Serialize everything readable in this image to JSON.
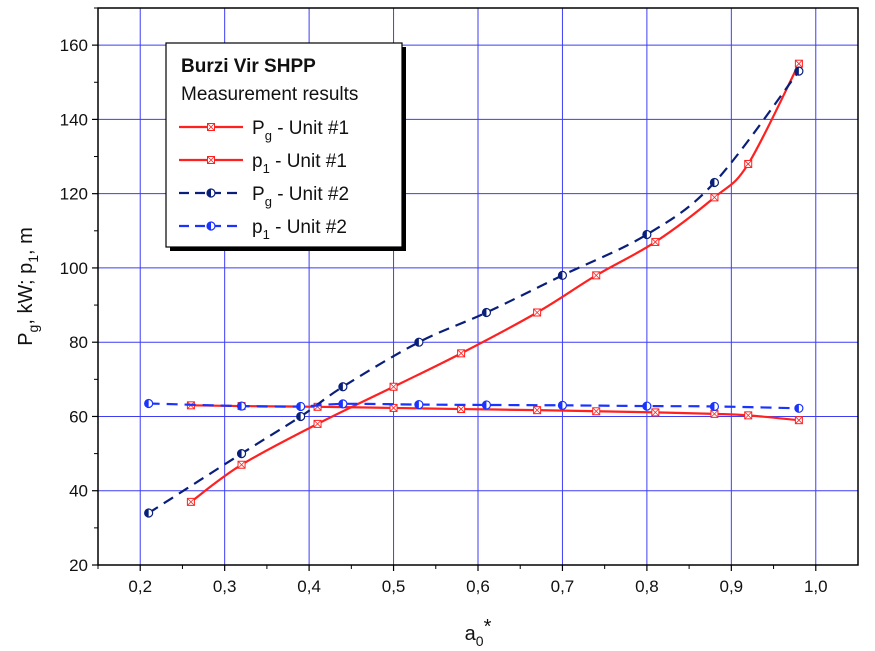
{
  "chart_data": {
    "type": "line",
    "xlabel": "a",
    "xlabel_sub": "0",
    "xlabel_sup": "*",
    "ylabel_parts": [
      {
        "t": "P",
        "sub": false
      },
      {
        "t": "g",
        "sub": true
      },
      {
        "t": ", kW; p",
        "sub": false
      },
      {
        "t": "1",
        "sub": true
      },
      {
        "t": ", m",
        "sub": false
      }
    ],
    "xlim": [
      0.15,
      1.05
    ],
    "ylim": [
      20,
      170
    ],
    "xticks": [
      0.2,
      0.3,
      0.4,
      0.5,
      0.6,
      0.7,
      0.8,
      0.9,
      1.0
    ],
    "xtick_labels": [
      "0,2",
      "0,3",
      "0,4",
      "0,5",
      "0,6",
      "0,7",
      "0,8",
      "0,9",
      "1,0"
    ],
    "yticks": [
      20,
      40,
      60,
      80,
      100,
      120,
      140,
      160
    ],
    "ytick_labels": [
      "20",
      "40",
      "60",
      "80",
      "100",
      "120",
      "140",
      "160"
    ],
    "grid": true,
    "legend": {
      "title": "Burzi Vir SHPP",
      "subtitle": "Measurement results",
      "placement": "top-left"
    },
    "series": [
      {
        "name_main": "P",
        "name_sub": "g",
        "name_rest": " - Unit  #1",
        "color": "#ff2020",
        "dash": "solid",
        "marker": "square-x",
        "x": [
          0.26,
          0.32,
          0.41,
          0.5,
          0.58,
          0.67,
          0.74,
          0.81,
          0.88,
          0.92,
          0.98
        ],
        "y": [
          37,
          47,
          58,
          68,
          77,
          88,
          98,
          107,
          119,
          128,
          155
        ]
      },
      {
        "name_main": "p",
        "name_sub": "1",
        "name_rest": " - Unit  #1",
        "color": "#ff2020",
        "dash": "solid",
        "marker": "square-x",
        "x": [
          0.26,
          0.32,
          0.41,
          0.5,
          0.58,
          0.67,
          0.74,
          0.81,
          0.88,
          0.92,
          0.98
        ],
        "y": [
          63,
          62.8,
          62.6,
          62.3,
          62,
          61.7,
          61.4,
          61.1,
          60.7,
          60.3,
          59
        ]
      },
      {
        "name_main": "P",
        "name_sub": "g",
        "name_rest": " - Unit  #2",
        "color": "#0a1f7a",
        "dash": "dashed",
        "marker": "half-circle",
        "x": [
          0.21,
          0.32,
          0.39,
          0.44,
          0.53,
          0.61,
          0.7,
          0.8,
          0.88,
          0.98
        ],
        "y": [
          34,
          50,
          60,
          68,
          80,
          88,
          98,
          109,
          123,
          153
        ]
      },
      {
        "name_main": "p",
        "name_sub": "1",
        "name_rest": " - Unit  #2",
        "color": "#1a33ff",
        "dash": "dashed",
        "marker": "half-circle",
        "x": [
          0.21,
          0.32,
          0.39,
          0.44,
          0.53,
          0.61,
          0.7,
          0.8,
          0.88,
          0.98
        ],
        "y": [
          63.5,
          62.8,
          62.7,
          63.4,
          63.2,
          63.1,
          63,
          62.8,
          62.7,
          62.2
        ]
      }
    ]
  }
}
